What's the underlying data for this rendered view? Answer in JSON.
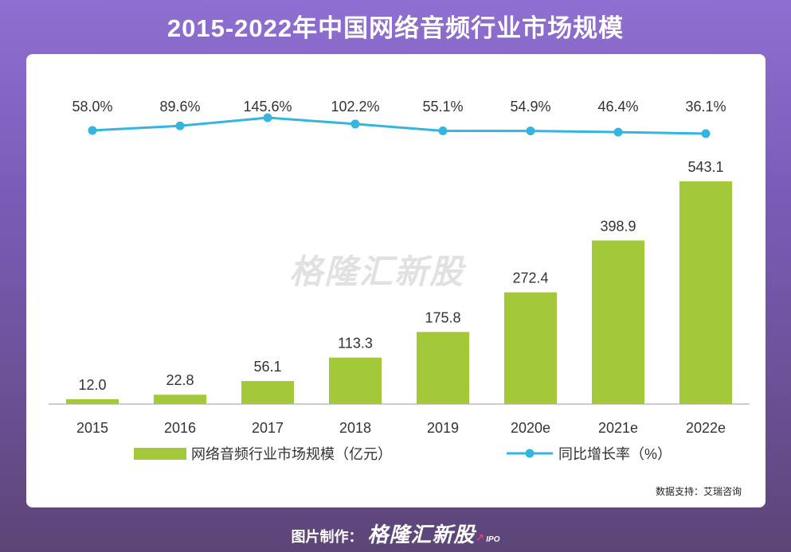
{
  "title": "2015-2022年中国网络音频行业市场规模",
  "colors": {
    "bar": "#a3c93a",
    "line": "#33b5e0",
    "label": "#333333"
  },
  "chart_data": {
    "type": "bar",
    "categories": [
      "2015",
      "2016",
      "2017",
      "2018",
      "2019",
      "2020e",
      "2021e",
      "2022e"
    ],
    "series": [
      {
        "name": "网络音频行业市场规模（亿元）",
        "type": "bar",
        "values": [
          12.0,
          22.8,
          56.1,
          113.3,
          175.8,
          272.4,
          398.9,
          543.1
        ],
        "labels": [
          "12.0",
          "22.8",
          "56.1",
          "113.3",
          "175.8",
          "272.4",
          "398.9",
          "543.1"
        ]
      },
      {
        "name": "同比增长率（%）",
        "type": "line",
        "values": [
          58.0,
          89.6,
          145.6,
          102.2,
          55.1,
          54.9,
          46.4,
          36.1
        ],
        "labels": [
          "58.0%",
          "89.6%",
          "145.6%",
          "102.2%",
          "55.1%",
          "54.9%",
          "46.4%",
          "36.1%"
        ]
      }
    ],
    "legend": [
      "网络音频行业市场规模（亿元）",
      "同比增长率（%）"
    ],
    "legend_position": "bottom"
  },
  "watermark": "格隆汇新股",
  "source": "数据支持：艾瑞咨询",
  "footer": {
    "prefix": "图片制作：",
    "brand": "格隆汇新股",
    "brand_sub": "IPO"
  }
}
